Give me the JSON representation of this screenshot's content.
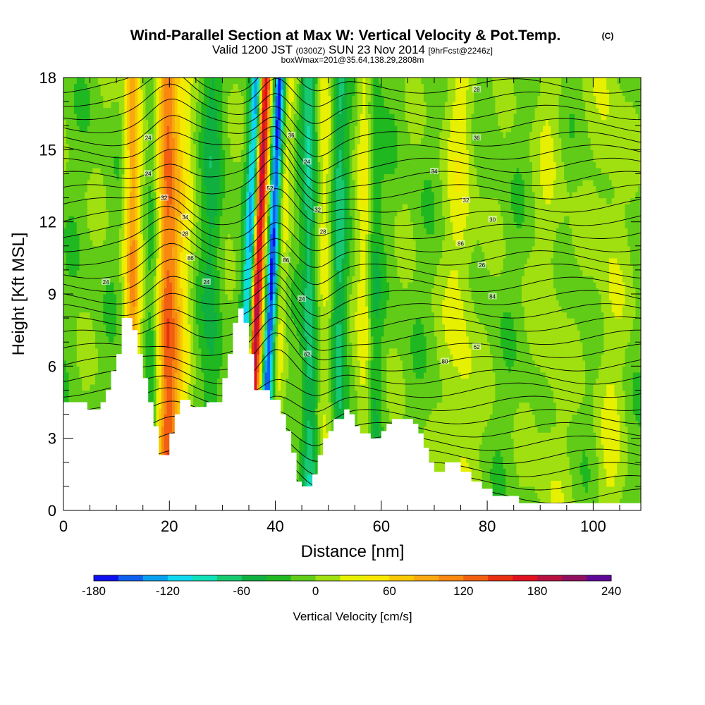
{
  "chart_data": {
    "type": "heatmap",
    "title": "Wind-Parallel Section at Max W: Vertical Velocity & Pot.Temp.",
    "title_mark": "(C)",
    "subtitle": {
      "valid_prefix": "Valid 1200 JST",
      "utc": "(0300Z)",
      "date": "SUN 23 Nov 2014",
      "forecast": "[9hrFcst@2246z]"
    },
    "subtitle2": "boxWmax=201@35.64,138.29,2808m",
    "xlabel": "Distance [nm]",
    "ylabel": "Height [Kft MSL]",
    "xlim": [
      0,
      109
    ],
    "ylim": [
      0,
      18
    ],
    "x_ticks": [
      "0",
      "20",
      "40",
      "60",
      "80",
      "100"
    ],
    "y_ticks": [
      "0",
      "3",
      "6",
      "9",
      "12",
      "15",
      "18"
    ],
    "colorbar": {
      "label": "Vertical Velocity [cm/s]",
      "min": -180,
      "max": 240,
      "step": 20,
      "tick_labels": [
        "-180",
        "-120",
        "-60",
        "0",
        "60",
        "120",
        "180",
        "240"
      ],
      "colors": [
        "#1010ee",
        "#1060ee",
        "#0aa0f0",
        "#10d8f0",
        "#10e0b8",
        "#18c870",
        "#10b040",
        "#20b820",
        "#60cc18",
        "#a0e010",
        "#e6f000",
        "#f8e800",
        "#f8c800",
        "#f8a810",
        "#f88810",
        "#f06010",
        "#e83010",
        "#e01020",
        "#b81040",
        "#901060",
        "#600898"
      ]
    },
    "terrain": [
      [
        0,
        4.5
      ],
      [
        4.5,
        4.5
      ],
      [
        4.5,
        4.2
      ],
      [
        7,
        4.2
      ],
      [
        7,
        4.5
      ],
      [
        8,
        4.5
      ],
      [
        8,
        5
      ],
      [
        9,
        5
      ],
      [
        9,
        5.8
      ],
      [
        10,
        5.8
      ],
      [
        10,
        6.5
      ],
      [
        11,
        6.5
      ],
      [
        11,
        8
      ],
      [
        13,
        8
      ],
      [
        13,
        7.5
      ],
      [
        14,
        7.5
      ],
      [
        14,
        6.5
      ],
      [
        15,
        6.5
      ],
      [
        15,
        5.5
      ],
      [
        16,
        5.5
      ],
      [
        16,
        4.5
      ],
      [
        17,
        4.5
      ],
      [
        17,
        3.5
      ],
      [
        18,
        3.5
      ],
      [
        18,
        2.3
      ],
      [
        20,
        2.3
      ],
      [
        20,
        3.2
      ],
      [
        21,
        3.2
      ],
      [
        21,
        4
      ],
      [
        22,
        4
      ],
      [
        22,
        4.6
      ],
      [
        24,
        4.6
      ],
      [
        24,
        4.3
      ],
      [
        27,
        4.3
      ],
      [
        27,
        4.5
      ],
      [
        30,
        4.5
      ],
      [
        30,
        5.5
      ],
      [
        31,
        5.5
      ],
      [
        31,
        6.5
      ],
      [
        32,
        6.5
      ],
      [
        32,
        7.8
      ],
      [
        33,
        7.8
      ],
      [
        33,
        8.4
      ],
      [
        34,
        8.4
      ],
      [
        34,
        7.8
      ],
      [
        35,
        7.8
      ],
      [
        35,
        6.5
      ],
      [
        36,
        6.5
      ],
      [
        36,
        5
      ],
      [
        39,
        5
      ],
      [
        39,
        4.6
      ],
      [
        41,
        4.6
      ],
      [
        41,
        4
      ],
      [
        42,
        4
      ],
      [
        42,
        3.3
      ],
      [
        43,
        3.3
      ],
      [
        43,
        2.4
      ],
      [
        44,
        2.4
      ],
      [
        44,
        1.2
      ],
      [
        45,
        1.2
      ],
      [
        45,
        1
      ],
      [
        47,
        1
      ],
      [
        47,
        1.5
      ],
      [
        48,
        1.5
      ],
      [
        48,
        2.3
      ],
      [
        49,
        2.3
      ],
      [
        49,
        3
      ],
      [
        50,
        3
      ],
      [
        50,
        3.3
      ],
      [
        51,
        3.3
      ],
      [
        51,
        3.8
      ],
      [
        53,
        3.8
      ],
      [
        53,
        4.2
      ],
      [
        54,
        4.2
      ],
      [
        54,
        4
      ],
      [
        55,
        4
      ],
      [
        55,
        3.5
      ],
      [
        56,
        3.5
      ],
      [
        56,
        3.2
      ],
      [
        58,
        3.2
      ],
      [
        58,
        3
      ],
      [
        60,
        3
      ],
      [
        60,
        3.3
      ],
      [
        61,
        3.3
      ],
      [
        61,
        3.6
      ],
      [
        62,
        3.6
      ],
      [
        62,
        3.8
      ],
      [
        66,
        3.8
      ],
      [
        66,
        3.6
      ],
      [
        67,
        3.6
      ],
      [
        67,
        3.2
      ],
      [
        68,
        3.2
      ],
      [
        68,
        2.6
      ],
      [
        69,
        2.6
      ],
      [
        69,
        2
      ],
      [
        70,
        2
      ],
      [
        70,
        1.6
      ],
      [
        72,
        1.6
      ],
      [
        72,
        2
      ],
      [
        75,
        2
      ],
      [
        75,
        1.6
      ],
      [
        77,
        1.6
      ],
      [
        77,
        1.2
      ],
      [
        79,
        1.2
      ],
      [
        79,
        0.9
      ],
      [
        81,
        0.9
      ],
      [
        81,
        0.6
      ],
      [
        86,
        0.6
      ],
      [
        86,
        0.3
      ],
      [
        109,
        0.3
      ]
    ],
    "potential_temperature_contour_labels": [
      {
        "text": "24",
        "x": 8,
        "y": 9.5
      },
      {
        "text": "24",
        "x": 16,
        "y": 15.5
      },
      {
        "text": "24",
        "x": 16,
        "y": 14
      },
      {
        "text": "32",
        "x": 19,
        "y": 13
      },
      {
        "text": "34",
        "x": 23,
        "y": 12.2
      },
      {
        "text": "28",
        "x": 23,
        "y": 11.5
      },
      {
        "text": "86",
        "x": 24,
        "y": 10.5
      },
      {
        "text": "24",
        "x": 27,
        "y": 9.5
      },
      {
        "text": "36",
        "x": 43,
        "y": 15.6
      },
      {
        "text": "24",
        "x": 46,
        "y": 14.5
      },
      {
        "text": "52",
        "x": 39,
        "y": 13.4
      },
      {
        "text": "32",
        "x": 48,
        "y": 12.5
      },
      {
        "text": "28",
        "x": 49,
        "y": 11.6
      },
      {
        "text": "86",
        "x": 42,
        "y": 10.4
      },
      {
        "text": "24",
        "x": 45,
        "y": 8.8
      },
      {
        "text": "62",
        "x": 46,
        "y": 6.5
      },
      {
        "text": "28",
        "x": 78,
        "y": 17.5
      },
      {
        "text": "36",
        "x": 78,
        "y": 15.5
      },
      {
        "text": "34",
        "x": 70,
        "y": 14.1
      },
      {
        "text": "32",
        "x": 76,
        "y": 12.9
      },
      {
        "text": "30",
        "x": 81,
        "y": 12.1
      },
      {
        "text": "86",
        "x": 75,
        "y": 11.1
      },
      {
        "text": "26",
        "x": 79,
        "y": 10.2
      },
      {
        "text": "84",
        "x": 81,
        "y": 8.9
      },
      {
        "text": "62",
        "x": 78,
        "y": 6.8
      },
      {
        "text": "80",
        "x": 72,
        "y": 6.2
      }
    ],
    "velocity_features": [
      {
        "x": 13,
        "w": 1.5,
        "v": 100
      },
      {
        "x": 19.5,
        "w": 1.8,
        "v": 120
      },
      {
        "x": 16.5,
        "w": 1.2,
        "v": -20
      },
      {
        "x": 22,
        "w": 2.2,
        "v": 55
      },
      {
        "x": 35,
        "w": 1.2,
        "v": -130
      },
      {
        "x": 36.3,
        "w": 1.0,
        "v": 190
      },
      {
        "x": 37.4,
        "w": 1.1,
        "v": 70
      },
      {
        "x": 39.2,
        "w": 1.1,
        "v": -175
      },
      {
        "x": 41,
        "w": 1.5,
        "v": 40
      },
      {
        "x": 46.5,
        "w": 1.5,
        "v": -70
      },
      {
        "x": 49.5,
        "w": 2,
        "v": 35
      },
      {
        "x": 52,
        "w": 1.5,
        "v": -60
      },
      {
        "x": 57,
        "w": 1.5,
        "v": 45
      },
      {
        "x": 58.5,
        "w": 1.5,
        "v": -35
      },
      {
        "x": 75,
        "w": 3,
        "v": 35
      },
      {
        "x": 92,
        "w": 3,
        "v": 22
      },
      {
        "x": 103,
        "w": 3,
        "v": 25
      },
      {
        "x": 28,
        "w": 2,
        "v": -35
      }
    ]
  }
}
